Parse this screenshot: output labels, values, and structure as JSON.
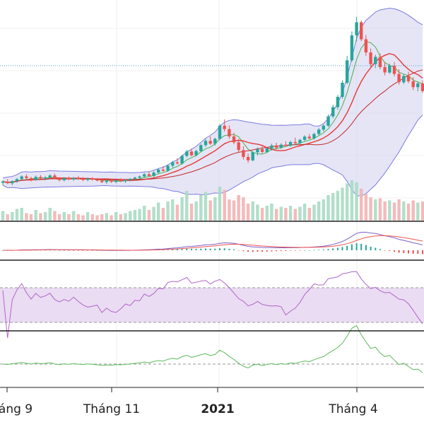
{
  "chart_data": {
    "type": "candlestick",
    "x_ticks": [
      {
        "label": "áng 9",
        "bold": false
      },
      {
        "label": "Tháng 11",
        "bold": false
      },
      {
        "label": "2021",
        "bold": true
      },
      {
        "label": "Tháng 4",
        "bold": false
      }
    ],
    "grid": true,
    "colors": {
      "up": "#26a69a",
      "down": "#ef5350",
      "bollinger_fill": "#d4d4f0",
      "bollinger_line": "#7b7be0",
      "ma_fast": "#4caf50",
      "ma_slow": "#e53935",
      "macd_line": "#7b61c8",
      "signal_line": "#ef5350",
      "rsi_line": "#b065c8",
      "rsi_band": "#eadcf2",
      "osc_line": "#5cb85c"
    },
    "panels": [
      {
        "name": "price",
        "indicators": [
          "candles",
          "bollinger",
          "ma",
          "volume"
        ]
      },
      {
        "name": "macd"
      },
      {
        "name": "rsi"
      },
      {
        "name": "oscillator"
      }
    ],
    "price_series": [
      [
        100,
        101,
        99,
        100.5
      ],
      [
        100.5,
        101.5,
        99.5,
        99.8
      ],
      [
        99.8,
        101,
        99,
        100.7
      ],
      [
        100.7,
        102,
        100,
        101.5
      ],
      [
        101.5,
        103,
        101,
        102.6
      ],
      [
        102.6,
        103.5,
        101.5,
        101.9
      ],
      [
        101.9,
        102.5,
        100.5,
        101.2
      ],
      [
        101.2,
        103,
        100.8,
        102.4
      ],
      [
        102.4,
        103.2,
        101.6,
        101.8
      ],
      [
        101.8,
        102.8,
        101,
        102.2
      ],
      [
        102.2,
        103.5,
        101.8,
        103
      ],
      [
        103,
        103.8,
        101.5,
        101.7
      ],
      [
        101.7,
        102.4,
        100.6,
        101.1
      ],
      [
        101.1,
        102.3,
        100.5,
        101.9
      ],
      [
        101.9,
        102.6,
        101,
        101.4
      ],
      [
        101.4,
        102.4,
        100.8,
        102
      ],
      [
        102,
        102.8,
        101.2,
        101.5
      ],
      [
        101.5,
        102.3,
        100.7,
        101.2
      ],
      [
        101.2,
        102.1,
        100.6,
        101.7
      ],
      [
        101.7,
        102.3,
        100.9,
        101.3
      ],
      [
        101.3,
        102,
        100.5,
        100.9
      ],
      [
        100.9,
        101.5,
        99.9,
        100.3
      ],
      [
        100.3,
        101.2,
        99.6,
        100.8
      ],
      [
        100.8,
        101.5,
        100,
        100.4
      ],
      [
        100.4,
        101.3,
        99.8,
        101
      ],
      [
        101,
        101.8,
        100.3,
        100.7
      ],
      [
        100.7,
        101.4,
        100,
        101.1
      ],
      [
        101.1,
        102,
        100.5,
        101.6
      ],
      [
        101.6,
        102.5,
        101,
        102.1
      ],
      [
        102.1,
        103,
        101.4,
        102.6
      ],
      [
        102.6,
        104,
        102,
        103.5
      ],
      [
        103.5,
        104.6,
        102.5,
        102.8
      ],
      [
        102.8,
        104.8,
        102.3,
        104.2
      ],
      [
        104.2,
        106,
        103.6,
        105.4
      ],
      [
        105.4,
        106.8,
        104.5,
        104.9
      ],
      [
        104.9,
        107.5,
        104.6,
        107
      ],
      [
        107,
        109,
        106.2,
        108.4
      ],
      [
        108.4,
        110,
        107.5,
        107.9
      ],
      [
        107.9,
        111.5,
        107.4,
        111
      ],
      [
        111,
        113.5,
        110.5,
        112.8
      ],
      [
        112.8,
        114,
        110.8,
        111.3
      ],
      [
        111.3,
        113.5,
        110.8,
        113
      ],
      [
        113,
        116,
        112.5,
        115.4
      ],
      [
        115.4,
        118,
        114.8,
        117.2
      ],
      [
        117.2,
        119,
        115.5,
        116
      ],
      [
        116,
        118.5,
        115.2,
        118
      ],
      [
        118,
        124,
        117.5,
        123.4
      ],
      [
        123.4,
        126,
        121,
        122
      ],
      [
        122,
        123.5,
        118,
        119
      ],
      [
        119,
        120.5,
        115.8,
        116.6
      ],
      [
        116.6,
        118,
        112.5,
        113.4
      ],
      [
        113.4,
        115,
        109.5,
        110.6
      ],
      [
        110.6,
        112,
        108.2,
        109.2
      ],
      [
        109.2,
        113,
        108.8,
        112.5
      ],
      [
        112.5,
        114.5,
        111.2,
        113.8
      ],
      [
        113.8,
        115,
        112,
        112.6
      ],
      [
        112.6,
        114.6,
        112.2,
        114.1
      ],
      [
        114.1,
        116,
        113.2,
        115.3
      ],
      [
        115.3,
        116.4,
        113.6,
        114.4
      ],
      [
        114.4,
        116.2,
        113.9,
        115.6
      ],
      [
        115.6,
        117,
        114.8,
        115.2
      ],
      [
        115.2,
        117.2,
        114.7,
        116.7
      ],
      [
        116.7,
        118.5,
        115.8,
        116.2
      ],
      [
        116.2,
        118,
        115.7,
        117.6
      ],
      [
        117.6,
        119.5,
        117.1,
        118.9
      ],
      [
        118.9,
        120,
        117.8,
        118.2
      ],
      [
        118.2,
        120.5,
        117.7,
        120
      ],
      [
        120,
        122.5,
        119.4,
        121.8
      ],
      [
        121.8,
        124,
        121,
        123.4
      ],
      [
        123.4,
        128,
        123,
        127.2
      ],
      [
        127.2,
        132,
        126.5,
        131
      ],
      [
        131,
        136,
        130,
        135.2
      ],
      [
        135.2,
        142,
        134.5,
        141
      ],
      [
        141,
        152,
        140.5,
        150.2
      ],
      [
        150.2,
        162,
        149.5,
        160.4
      ],
      [
        160.4,
        168,
        158,
        165.8
      ],
      [
        165.8,
        166.5,
        158,
        158.8
      ],
      [
        158.8,
        160.5,
        152,
        153.4
      ],
      [
        153.4,
        155,
        147.5,
        148.6
      ],
      [
        148.6,
        152.5,
        147,
        151.6
      ],
      [
        151.6,
        153,
        146.5,
        147.4
      ],
      [
        147.4,
        149.5,
        144,
        145.2
      ],
      [
        145.2,
        148.8,
        144.6,
        148
      ],
      [
        148,
        149.5,
        143.6,
        144.6
      ],
      [
        144.6,
        146.5,
        140.2,
        141.2
      ],
      [
        141.2,
        144.5,
        140.5,
        143.8
      ],
      [
        143.8,
        145.5,
        140.8,
        141.6
      ],
      [
        141.6,
        143.2,
        138,
        139.2
      ],
      [
        139.2,
        141.5,
        137.5,
        140.7
      ],
      [
        140.7,
        142,
        136.8,
        137.6
      ]
    ],
    "volume_series": [
      0.45,
      0.3,
      0.4,
      0.55,
      0.6,
      0.35,
      0.3,
      0.5,
      0.35,
      0.4,
      0.6,
      0.45,
      0.3,
      0.4,
      0.3,
      0.45,
      0.3,
      0.25,
      0.4,
      0.3,
      0.25,
      0.3,
      0.35,
      0.25,
      0.4,
      0.3,
      0.35,
      0.45,
      0.5,
      0.55,
      0.7,
      0.5,
      0.65,
      0.85,
      0.6,
      0.9,
      1.0,
      0.75,
      1.1,
      1.4,
      0.8,
      0.9,
      1.2,
      1.35,
      0.95,
      1.1,
      1.6,
      1.45,
      1.0,
      0.95,
      1.2,
      1.1,
      0.8,
      0.9,
      0.75,
      0.6,
      0.7,
      0.8,
      0.55,
      0.65,
      0.6,
      0.7,
      0.55,
      0.65,
      0.8,
      0.6,
      0.75,
      0.9,
      1.0,
      1.2,
      1.3,
      1.4,
      1.55,
      1.75,
      1.9,
      1.8,
      1.5,
      1.25,
      1.1,
      1.0,
      1.05,
      0.9,
      0.95,
      0.85,
      1.0,
      0.9,
      0.8,
      0.95,
      0.85,
      0.9
    ],
    "reference_line": {
      "value": 148,
      "style": "dotted"
    }
  }
}
